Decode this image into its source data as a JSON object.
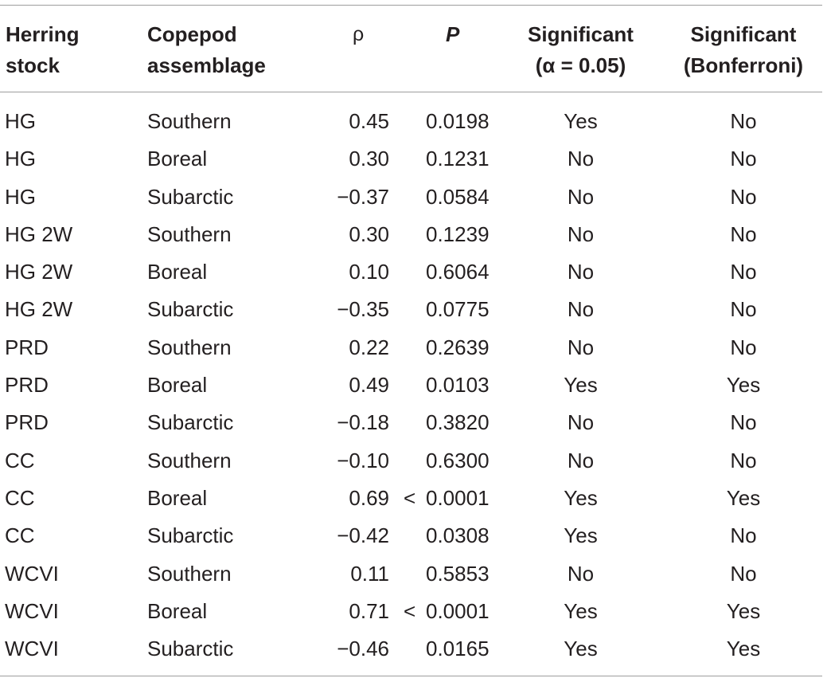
{
  "table": {
    "headers": {
      "stock": [
        "Herring",
        "stock"
      ],
      "copepod": [
        "Copepod",
        "assemblage"
      ],
      "rho": "ρ",
      "p": "P",
      "sig_alpha": [
        "Significant",
        "(α = 0.05)"
      ],
      "sig_bonf": [
        "Significant",
        "(Bonferroni)"
      ]
    },
    "rows": [
      {
        "stock": "HG",
        "copepod": "Southern",
        "rho": "0.45",
        "p_prefix": "",
        "p": "0.0198",
        "sig_alpha": "Yes",
        "sig_bonf": "No"
      },
      {
        "stock": "HG",
        "copepod": "Boreal",
        "rho": "0.30",
        "p_prefix": "",
        "p": "0.1231",
        "sig_alpha": "No",
        "sig_bonf": "No"
      },
      {
        "stock": "HG",
        "copepod": "Subarctic",
        "rho": "−0.37",
        "p_prefix": "",
        "p": "0.0584",
        "sig_alpha": "No",
        "sig_bonf": "No"
      },
      {
        "stock": "HG 2W",
        "copepod": "Southern",
        "rho": "0.30",
        "p_prefix": "",
        "p": "0.1239",
        "sig_alpha": "No",
        "sig_bonf": "No"
      },
      {
        "stock": "HG 2W",
        "copepod": "Boreal",
        "rho": "0.10",
        "p_prefix": "",
        "p": "0.6064",
        "sig_alpha": "No",
        "sig_bonf": "No"
      },
      {
        "stock": "HG 2W",
        "copepod": "Subarctic",
        "rho": "−0.35",
        "p_prefix": "",
        "p": "0.0775",
        "sig_alpha": "No",
        "sig_bonf": "No"
      },
      {
        "stock": "PRD",
        "copepod": "Southern",
        "rho": "0.22",
        "p_prefix": "",
        "p": "0.2639",
        "sig_alpha": "No",
        "sig_bonf": "No"
      },
      {
        "stock": "PRD",
        "copepod": "Boreal",
        "rho": "0.49",
        "p_prefix": "",
        "p": "0.0103",
        "sig_alpha": "Yes",
        "sig_bonf": "Yes"
      },
      {
        "stock": "PRD",
        "copepod": "Subarctic",
        "rho": "−0.18",
        "p_prefix": "",
        "p": "0.3820",
        "sig_alpha": "No",
        "sig_bonf": "No"
      },
      {
        "stock": "CC",
        "copepod": "Southern",
        "rho": "−0.10",
        "p_prefix": "",
        "p": "0.6300",
        "sig_alpha": "No",
        "sig_bonf": "No"
      },
      {
        "stock": "CC",
        "copepod": "Boreal",
        "rho": "0.69",
        "p_prefix": "<",
        "p": "0.0001",
        "sig_alpha": "Yes",
        "sig_bonf": "Yes"
      },
      {
        "stock": "CC",
        "copepod": "Subarctic",
        "rho": "−0.42",
        "p_prefix": "",
        "p": "0.0308",
        "sig_alpha": "Yes",
        "sig_bonf": "No"
      },
      {
        "stock": "WCVI",
        "copepod": "Southern",
        "rho": "0.11",
        "p_prefix": "",
        "p": "0.5853",
        "sig_alpha": "No",
        "sig_bonf": "No"
      },
      {
        "stock": "WCVI",
        "copepod": "Boreal",
        "rho": "0.71",
        "p_prefix": "<",
        "p": "0.0001",
        "sig_alpha": "Yes",
        "sig_bonf": "Yes"
      },
      {
        "stock": "WCVI",
        "copepod": "Subarctic",
        "rho": "−0.46",
        "p_prefix": "",
        "p": "0.0165",
        "sig_alpha": "Yes",
        "sig_bonf": "Yes"
      }
    ]
  }
}
